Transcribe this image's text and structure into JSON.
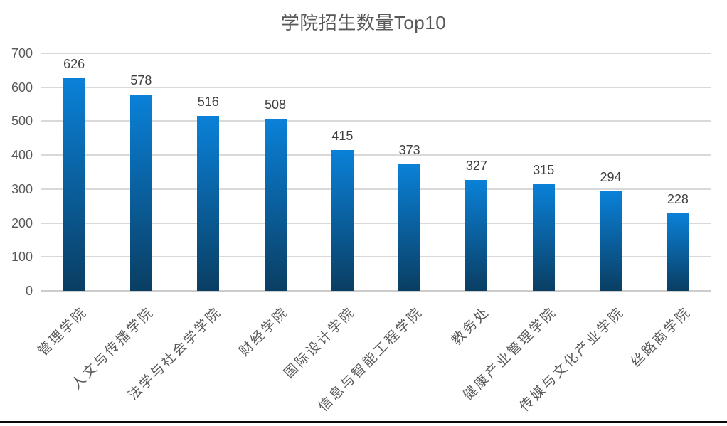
{
  "chart_data": {
    "type": "bar",
    "title": "学院招生数量Top10",
    "categories": [
      "管理学院",
      "人文与传播学院",
      "法学与社会学学院",
      "财经学院",
      "国际设计学院",
      "信息与智能工程学院",
      "教务处",
      "健康产业管理学院",
      "传媒与文化产业学院",
      "丝路商学院"
    ],
    "values": [
      626,
      578,
      516,
      508,
      415,
      373,
      327,
      315,
      294,
      228
    ],
    "xlabel": "",
    "ylabel": "",
    "ylim": [
      0,
      700
    ],
    "y_ticks": [
      0,
      100,
      200,
      300,
      400,
      500,
      600,
      700
    ],
    "grid": "horizontal",
    "legend_position": "none",
    "data_labels": true,
    "colors": {
      "bar_gradient_top": "#0a81d8",
      "bar_gradient_bottom": "#0a3e63",
      "gridline": "#d9d9d9",
      "axis_text": "#595959",
      "value_label_text": "#404040",
      "title_text": "#595959",
      "background": "#ffffff"
    }
  }
}
